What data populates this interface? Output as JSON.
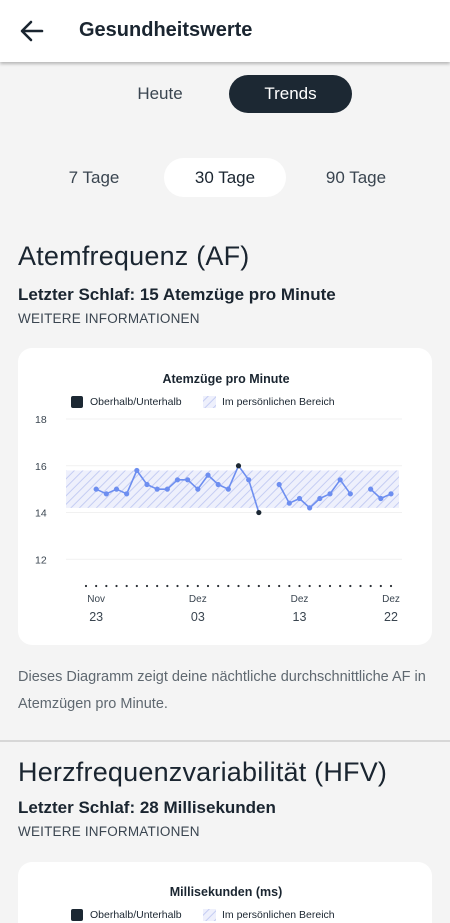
{
  "header": {
    "title": "Gesundheitswerte",
    "back_icon": "arrow-left-icon"
  },
  "view_toggle": {
    "options": [
      "Heute",
      "Trends"
    ],
    "selected": "Trends"
  },
  "range_toggle": {
    "options": [
      "7 Tage",
      "30 Tage",
      "90 Tage"
    ],
    "selected": "30 Tage"
  },
  "respiratory": {
    "title": "Atemfrequenz (AF)",
    "last_sleep": "Letzter Schlaf: 15 Atemzüge pro Minute",
    "more_info": "WEITERE INFORMATIONEN",
    "description": "Dieses Diagramm zeigt deine nächtliche durchschnittliche AF in Atemzügen pro Minute.",
    "chart_data": {
      "type": "line",
      "title": "Atemzüge pro Minute",
      "legend": [
        {
          "label": "Oberhalb/Unterhalb",
          "color": "#1c2833"
        },
        {
          "label": "Im persönlichen Bereich",
          "color": "#c9d1f5"
        }
      ],
      "legend_position": "top",
      "yticks": [
        18,
        16,
        14,
        12
      ],
      "ylim": [
        11.2,
        18.6
      ],
      "personal_range": [
        14.2,
        15.8
      ],
      "xlim": [
        22,
        52
      ],
      "xticks": [
        {
          "x": 23,
          "month": "Nov",
          "day": "23"
        },
        {
          "x": 33,
          "month": "Dez",
          "day": "03"
        },
        {
          "x": 43,
          "month": "Dez",
          "day": "13"
        },
        {
          "x": 52,
          "month": "Dez",
          "day": "22"
        }
      ],
      "grid": true,
      "line_color": "#6d8ef0",
      "outside_color": "#1c2833",
      "segments": [
        [
          [
            23,
            15.0
          ],
          [
            24,
            14.8
          ],
          [
            25,
            15.0
          ],
          [
            26,
            14.8
          ],
          [
            27,
            15.8
          ],
          [
            28,
            15.2
          ],
          [
            29,
            15.0
          ],
          [
            30,
            15.0
          ],
          [
            31,
            15.4
          ],
          [
            32,
            15.4
          ],
          [
            33,
            15.0
          ],
          [
            34,
            15.6
          ],
          [
            35,
            15.2
          ],
          [
            36,
            15.0
          ],
          [
            37,
            16.0
          ],
          [
            38,
            15.4
          ],
          [
            39,
            14.0
          ]
        ],
        [
          [
            41,
            15.2
          ],
          [
            42,
            14.4
          ],
          [
            43,
            14.6
          ],
          [
            44,
            14.2
          ],
          [
            45,
            14.6
          ],
          [
            46,
            14.8
          ],
          [
            47,
            15.4
          ],
          [
            48,
            14.8
          ]
        ],
        [
          [
            50,
            15.0
          ],
          [
            51,
            14.6
          ],
          [
            52,
            14.8
          ]
        ]
      ]
    }
  },
  "hrv": {
    "title": "Herzfrequenzvariabilität (HFV)",
    "last_sleep": "Letzter Schlaf: 28 Millisekunden",
    "more_info": "WEITERE INFORMATIONEN",
    "chart_data": {
      "type": "line",
      "title": "Millisekunden (ms)",
      "legend": [
        {
          "label": "Oberhalb/Unterhalb",
          "color": "#1c2833"
        },
        {
          "label": "Im persönlichen Bereich",
          "color": "#c9d1f5"
        }
      ],
      "legend_position": "top"
    }
  }
}
